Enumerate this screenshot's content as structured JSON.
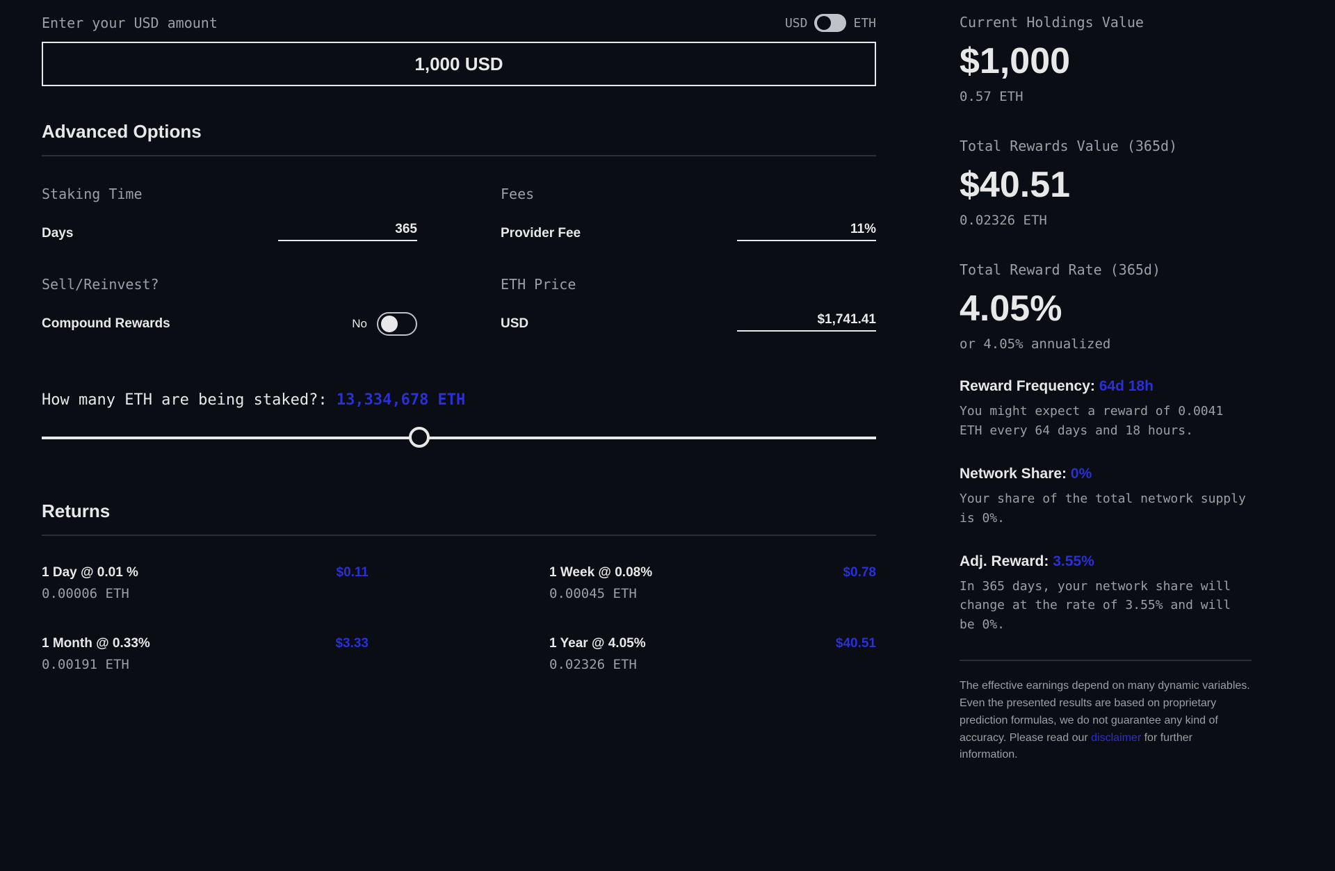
{
  "input": {
    "label": "Enter your USD amount",
    "amount": "1,000 USD",
    "toggle": {
      "left": "USD",
      "right": "ETH",
      "state_left": true
    }
  },
  "advanced": {
    "title": "Advanced Options",
    "staking_time": {
      "label": "Staking Time",
      "sublabel": "Days",
      "value": "365"
    },
    "fees": {
      "label": "Fees",
      "sublabel": "Provider Fee",
      "value": "11%"
    },
    "sell_reinvest": {
      "label": "Sell/Reinvest?",
      "sublabel": "Compound Rewards",
      "toggle_label": "No"
    },
    "eth_price": {
      "label": "ETH Price",
      "sublabel": "USD",
      "value": "$1,741.41"
    }
  },
  "staked": {
    "label": "How many ETH are being staked?:",
    "value": "13,334,678 ETH",
    "slider_pct": 44
  },
  "returns": {
    "title": "Returns",
    "items": [
      {
        "title": "1 Day @ 0.01 %",
        "eth": "0.00006 ETH",
        "usd": "$0.11"
      },
      {
        "title": "1 Week @ 0.08%",
        "eth": "0.00045 ETH",
        "usd": "$0.78"
      },
      {
        "title": "1 Month @ 0.33%",
        "eth": "0.00191 ETH",
        "usd": "$3.33"
      },
      {
        "title": "1 Year @ 4.05%",
        "eth": "0.02326 ETH",
        "usd": "$40.51"
      }
    ]
  },
  "summary": {
    "holdings": {
      "label": "Current Holdings Value",
      "usd": "$1,000",
      "eth": "0.57 ETH"
    },
    "rewards": {
      "label": "Total Rewards Value (365d)",
      "usd": "$40.51",
      "eth": "0.02326 ETH"
    },
    "rate": {
      "label": "Total Reward Rate (365d)",
      "pct": "4.05%",
      "sub": "or 4.05% annualized"
    },
    "freq": {
      "label": "Reward Frequency:",
      "value": "64d 18h",
      "desc": "You might expect a reward of 0.0041 ETH every 64 days and 18 hours."
    },
    "share": {
      "label": "Network Share:",
      "value": "0%",
      "desc": "Your share of the total network supply is 0%."
    },
    "adj": {
      "label": "Adj. Reward:",
      "value": "3.55%",
      "desc": "In 365 days, your network share will change at the rate of 3.55% and will be 0%."
    },
    "disclaimer_pre": "The effective earnings depend on many dynamic variables. Even the presented results are based on proprietary prediction formulas, we do not guarantee any kind of accuracy. Please read our ",
    "disclaimer_link": "disclaimer",
    "disclaimer_post": " for further information."
  }
}
